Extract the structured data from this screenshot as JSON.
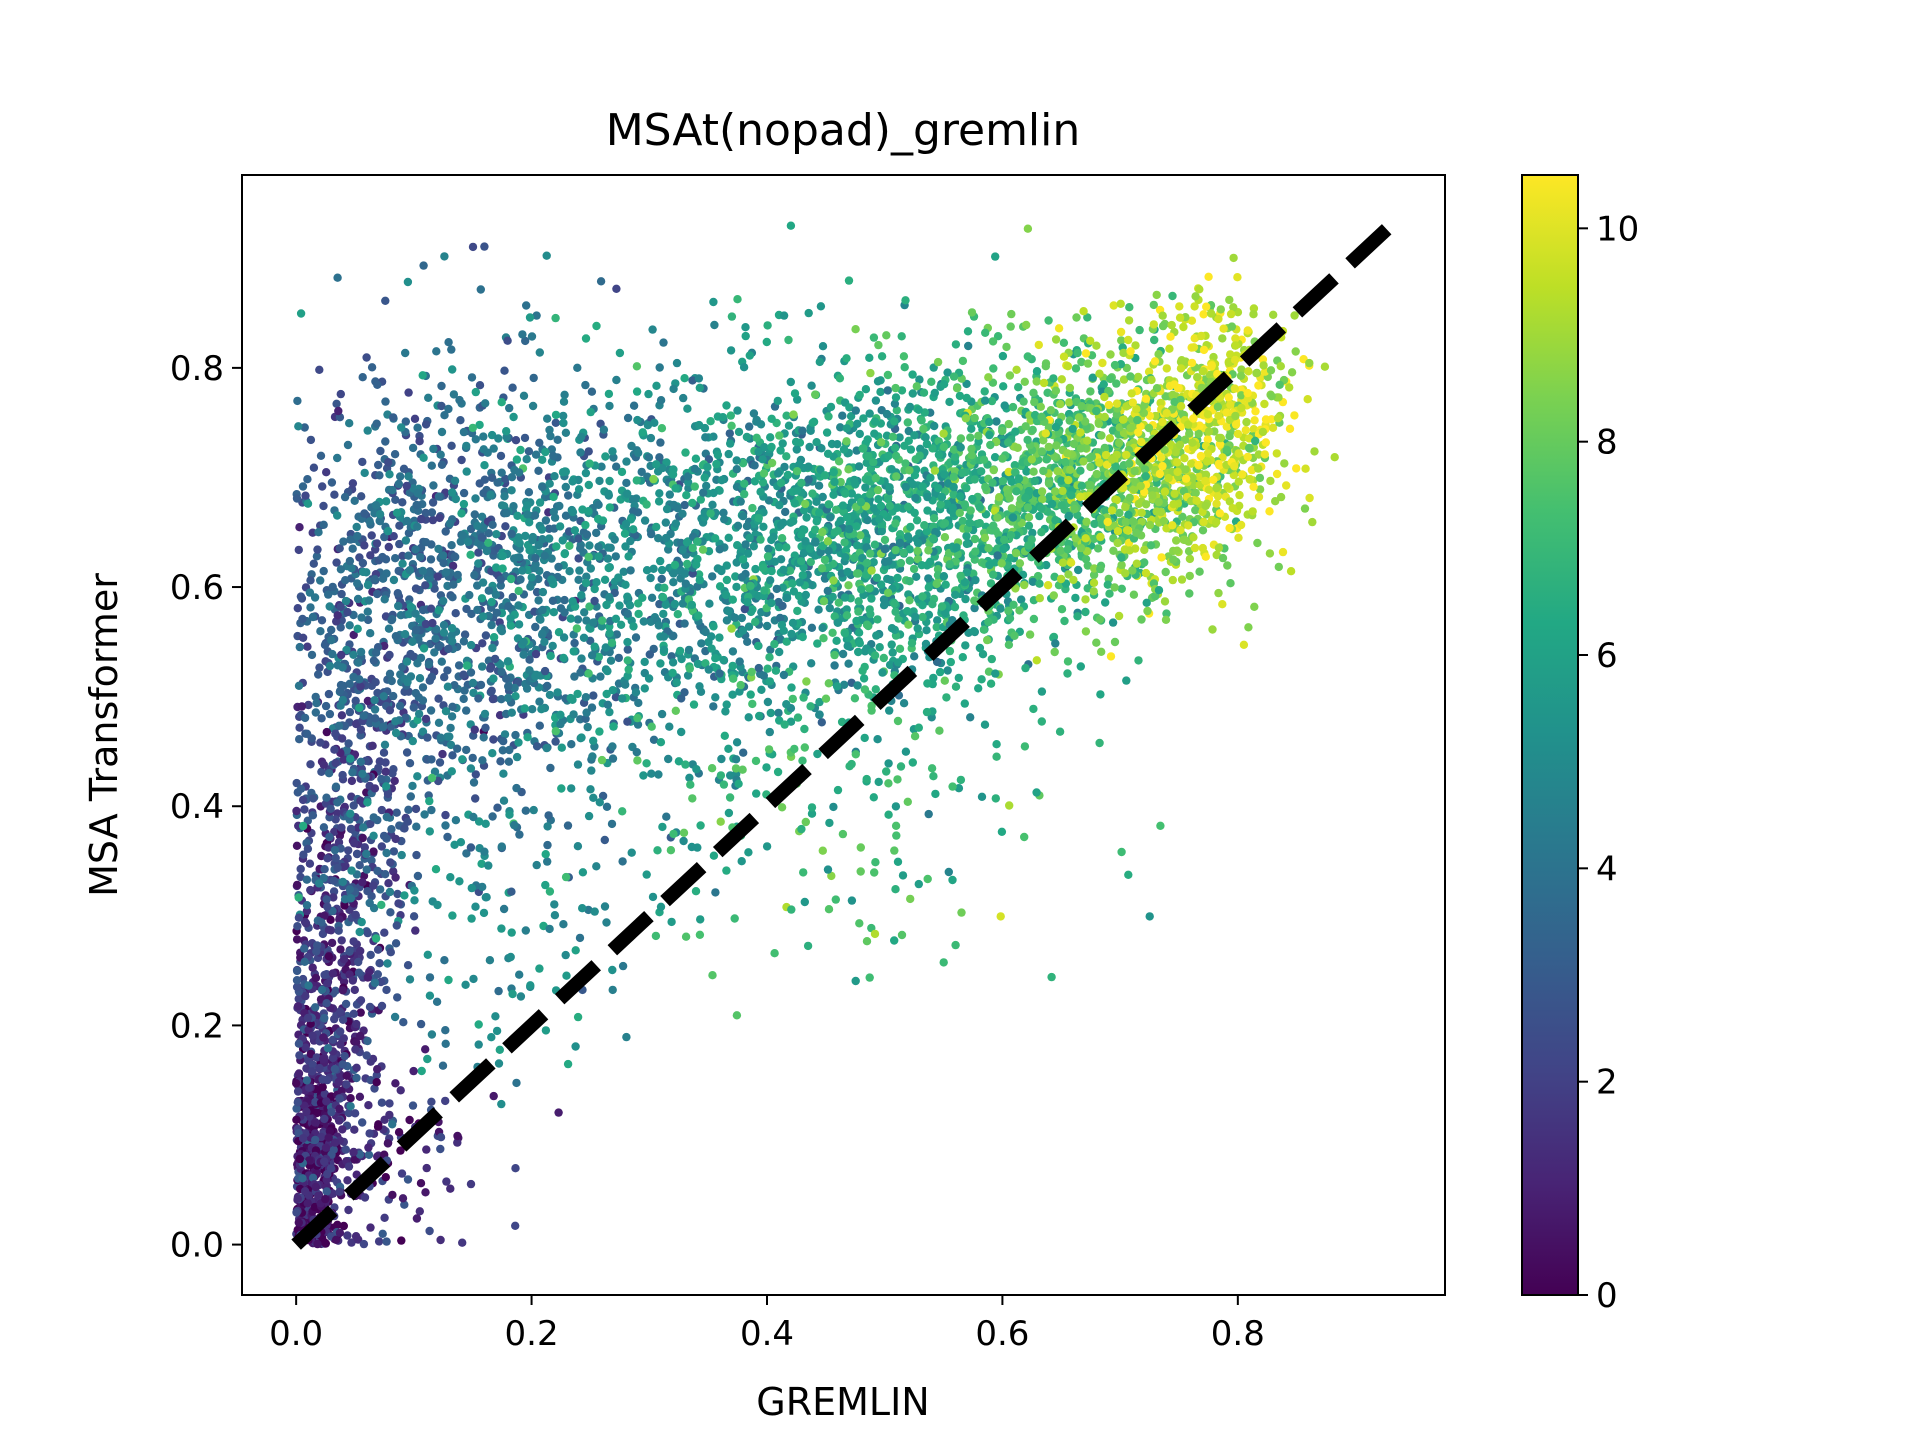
{
  "chart_data": {
    "type": "scatter",
    "title": "MSAt(nopad)_gremlin",
    "xlabel": "GREMLIN",
    "ylabel": "MSA Transformer",
    "xlim": [
      -0.046,
      0.976
    ],
    "ylim": [
      -0.046,
      0.976
    ],
    "xticks": [
      "0.0",
      "0.2",
      "0.4",
      "0.6",
      "0.8"
    ],
    "xtick_values": [
      0.0,
      0.2,
      0.4,
      0.6,
      0.8
    ],
    "yticks": [
      "0.0",
      "0.2",
      "0.4",
      "0.6",
      "0.8"
    ],
    "ytick_values": [
      0.0,
      0.2,
      0.4,
      0.6,
      0.8
    ],
    "colorbar": {
      "colormap": "viridis",
      "range": [
        0,
        10.5
      ],
      "ticks": [
        "0",
        "2",
        "4",
        "6",
        "8",
        "10"
      ],
      "tick_values": [
        0,
        2,
        4,
        6,
        8,
        10
      ]
    },
    "reference_line": {
      "x": [
        0.0,
        0.93
      ],
      "y": [
        0.0,
        0.93
      ],
      "style": "dashed",
      "color": "#000000"
    },
    "grid": false,
    "legend": "none",
    "point_clusters": [
      {
        "x": 0.015,
        "y": 0.08,
        "sx": 0.012,
        "sy": 0.06,
        "c": 0.7,
        "n": 420
      },
      {
        "x": 0.03,
        "y": 0.22,
        "sx": 0.02,
        "sy": 0.1,
        "c": 1.5,
        "n": 420
      },
      {
        "x": 0.05,
        "y": 0.42,
        "sx": 0.03,
        "sy": 0.12,
        "c": 2.6,
        "n": 420
      },
      {
        "x": 0.09,
        "y": 0.58,
        "sx": 0.05,
        "sy": 0.1,
        "c": 3.2,
        "n": 460
      },
      {
        "x": 0.18,
        "y": 0.6,
        "sx": 0.07,
        "sy": 0.1,
        "c": 4.0,
        "n": 700
      },
      {
        "x": 0.32,
        "y": 0.62,
        "sx": 0.08,
        "sy": 0.09,
        "c": 5.0,
        "n": 800
      },
      {
        "x": 0.46,
        "y": 0.64,
        "sx": 0.07,
        "sy": 0.08,
        "c": 5.8,
        "n": 750
      },
      {
        "x": 0.55,
        "y": 0.66,
        "sx": 0.06,
        "sy": 0.07,
        "c": 6.5,
        "n": 650
      },
      {
        "x": 0.65,
        "y": 0.7,
        "sx": 0.05,
        "sy": 0.06,
        "c": 7.4,
        "n": 600
      },
      {
        "x": 0.72,
        "y": 0.7,
        "sx": 0.04,
        "sy": 0.06,
        "c": 8.6,
        "n": 550
      },
      {
        "x": 0.78,
        "y": 0.76,
        "sx": 0.035,
        "sy": 0.05,
        "c": 9.5,
        "n": 500
      },
      {
        "x": 0.45,
        "y": 0.42,
        "sx": 0.1,
        "sy": 0.09,
        "c": 7.0,
        "n": 200
      },
      {
        "x": 0.18,
        "y": 0.3,
        "sx": 0.07,
        "sy": 0.08,
        "c": 5.0,
        "n": 140
      },
      {
        "x": 0.07,
        "y": 0.08,
        "sx": 0.04,
        "sy": 0.05,
        "c": 1.4,
        "n": 120
      }
    ]
  }
}
